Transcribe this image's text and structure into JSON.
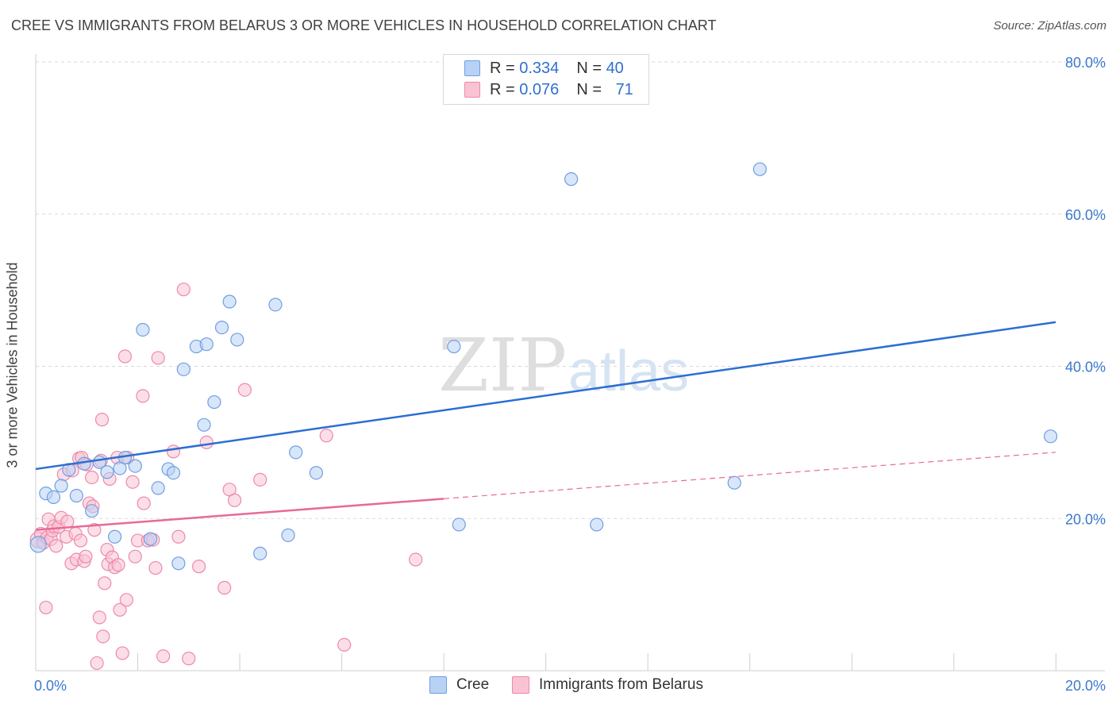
{
  "header": {
    "title": "CREE VS IMMIGRANTS FROM BELARUS 3 OR MORE VEHICLES IN HOUSEHOLD CORRELATION CHART",
    "source": "Source: ZipAtlas.com"
  },
  "watermark": {
    "part1": "ZIP",
    "part2": "atlas"
  },
  "legend": {
    "rows": [
      {
        "r_label": "R =",
        "r_value": "0.334",
        "n_label": "N =",
        "n_value": "40"
      },
      {
        "r_label": "R =",
        "r_value": "0.076",
        "n_label": "N =",
        "n_value": "71"
      }
    ]
  },
  "bottom_legend": {
    "series1": "Cree",
    "series2": "Immigrants from Belarus"
  },
  "colors": {
    "cree_fill": "#b8d2f5",
    "cree_stroke": "#6f9fe0",
    "cree_line": "#2b6fd1",
    "belarus_fill": "#f9c3d4",
    "belarus_stroke": "#ec8aaa",
    "belarus_line": "#e8699a",
    "tick_text": "#3a78d0",
    "grid": "#d9d9d9"
  },
  "chart_data": {
    "type": "scatter",
    "title": "CREE VS IMMIGRANTS FROM BELARUS 3 OR MORE VEHICLES IN HOUSEHOLD CORRELATION CHART",
    "xlabel": "",
    "ylabel": "3 or more Vehicles in Household",
    "xlim": [
      0,
      20
    ],
    "ylim": [
      0,
      80
    ],
    "x_tick_labels": [
      "0.0%",
      "20.0%"
    ],
    "y_tick_labels": [
      "20.0%",
      "40.0%",
      "60.0%",
      "80.0%"
    ],
    "y_tick_values": [
      20,
      40,
      60,
      80
    ],
    "series": [
      {
        "name": "Cree",
        "r": 0.334,
        "n": 40,
        "trend": {
          "x": [
            0,
            20
          ],
          "y": [
            26.5,
            45.8
          ],
          "style": "solid"
        },
        "points": [
          [
            0.05,
            16.6
          ],
          [
            0.2,
            23.3
          ],
          [
            0.35,
            22.8
          ],
          [
            0.5,
            24.3
          ],
          [
            0.65,
            26.4
          ],
          [
            0.8,
            23.0
          ],
          [
            0.95,
            27.2
          ],
          [
            1.1,
            21.0
          ],
          [
            1.25,
            27.4
          ],
          [
            1.4,
            26.1
          ],
          [
            1.55,
            17.6
          ],
          [
            1.65,
            26.6
          ],
          [
            1.75,
            28.0
          ],
          [
            1.95,
            26.9
          ],
          [
            2.1,
            44.8
          ],
          [
            2.25,
            17.3
          ],
          [
            2.4,
            24.0
          ],
          [
            2.6,
            26.5
          ],
          [
            2.7,
            26.0
          ],
          [
            2.8,
            14.1
          ],
          [
            2.9,
            39.6
          ],
          [
            3.15,
            42.6
          ],
          [
            3.35,
            42.9
          ],
          [
            3.3,
            32.3
          ],
          [
            3.5,
            35.3
          ],
          [
            3.65,
            45.1
          ],
          [
            3.8,
            48.5
          ],
          [
            3.95,
            43.5
          ],
          [
            4.4,
            15.4
          ],
          [
            4.7,
            48.1
          ],
          [
            4.95,
            17.8
          ],
          [
            5.1,
            28.7
          ],
          [
            5.5,
            26.0
          ],
          [
            8.2,
            42.6
          ],
          [
            8.3,
            19.2
          ],
          [
            10.5,
            64.6
          ],
          [
            11.0,
            19.2
          ],
          [
            13.7,
            24.7
          ],
          [
            14.2,
            65.9
          ],
          [
            19.9,
            30.8
          ]
        ]
      },
      {
        "name": "Immigrants from Belarus",
        "r": 0.076,
        "n": 71,
        "trend": {
          "x": [
            0,
            8
          ],
          "y": [
            18.5,
            22.6
          ],
          "style": "solid",
          "dashed_extension": {
            "x": [
              8,
              20
            ],
            "y": [
              22.6,
              28.7
            ]
          }
        },
        "points": [
          [
            0.05,
            17.2
          ],
          [
            0.1,
            18.0
          ],
          [
            0.15,
            16.8
          ],
          [
            0.2,
            8.3
          ],
          [
            0.22,
            17.5
          ],
          [
            0.25,
            19.9
          ],
          [
            0.3,
            17.3
          ],
          [
            0.33,
            18.4
          ],
          [
            0.36,
            19.0
          ],
          [
            0.4,
            16.4
          ],
          [
            0.45,
            18.9
          ],
          [
            0.5,
            20.1
          ],
          [
            0.55,
            25.8
          ],
          [
            0.6,
            17.6
          ],
          [
            0.62,
            19.6
          ],
          [
            0.7,
            14.1
          ],
          [
            0.72,
            26.3
          ],
          [
            0.78,
            18.0
          ],
          [
            0.8,
            14.6
          ],
          [
            0.85,
            27.9
          ],
          [
            0.88,
            17.1
          ],
          [
            0.9,
            28.0
          ],
          [
            0.95,
            14.4
          ],
          [
            0.98,
            15.0
          ],
          [
            1.0,
            27.1
          ],
          [
            1.05,
            22.0
          ],
          [
            1.1,
            25.4
          ],
          [
            1.12,
            21.6
          ],
          [
            1.15,
            18.5
          ],
          [
            1.2,
            1.0
          ],
          [
            1.25,
            7.0
          ],
          [
            1.28,
            27.6
          ],
          [
            1.3,
            33.0
          ],
          [
            1.32,
            4.5
          ],
          [
            1.35,
            11.5
          ],
          [
            1.4,
            15.9
          ],
          [
            1.42,
            14.0
          ],
          [
            1.45,
            25.2
          ],
          [
            1.5,
            14.9
          ],
          [
            1.55,
            13.6
          ],
          [
            1.6,
            28.0
          ],
          [
            1.62,
            13.9
          ],
          [
            1.65,
            8.0
          ],
          [
            1.7,
            2.3
          ],
          [
            1.75,
            41.3
          ],
          [
            1.78,
            9.3
          ],
          [
            1.8,
            28.0
          ],
          [
            1.9,
            24.8
          ],
          [
            1.95,
            15.0
          ],
          [
            2.0,
            17.1
          ],
          [
            2.1,
            36.1
          ],
          [
            2.12,
            22.0
          ],
          [
            2.2,
            17.1
          ],
          [
            2.3,
            17.2
          ],
          [
            2.35,
            13.5
          ],
          [
            2.4,
            41.1
          ],
          [
            2.5,
            1.9
          ],
          [
            2.7,
            28.8
          ],
          [
            2.8,
            17.6
          ],
          [
            2.9,
            50.1
          ],
          [
            3.0,
            1.6
          ],
          [
            3.2,
            13.7
          ],
          [
            3.35,
            30.0
          ],
          [
            3.7,
            10.9
          ],
          [
            3.8,
            23.8
          ],
          [
            3.9,
            22.4
          ],
          [
            4.1,
            36.9
          ],
          [
            4.4,
            25.1
          ],
          [
            5.7,
            30.9
          ],
          [
            6.05,
            3.4
          ],
          [
            7.45,
            14.6
          ]
        ]
      }
    ]
  }
}
